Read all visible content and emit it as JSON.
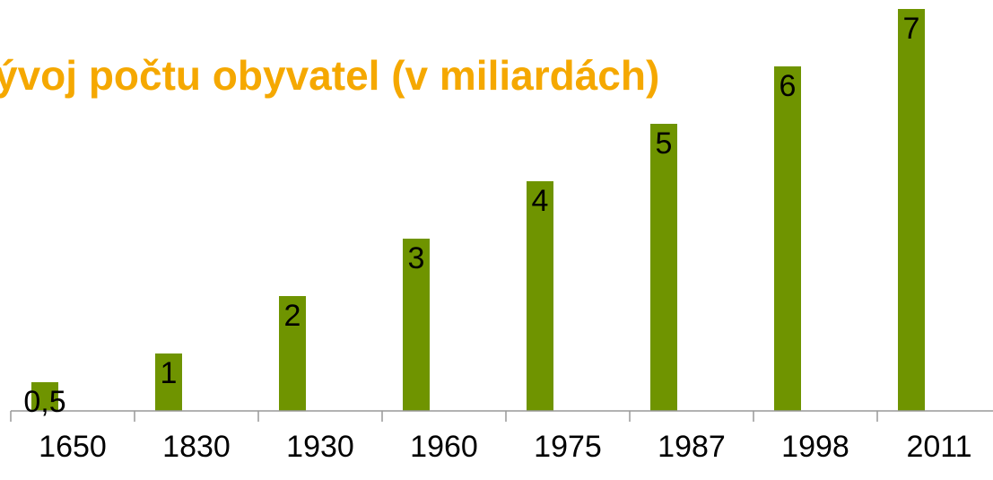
{
  "chart_data": {
    "type": "bar",
    "title": "ývoj počtu obyvatel (v miliardách)",
    "categories": [
      "1650",
      "1830",
      "1930",
      "1960",
      "1975",
      "1987",
      "1998",
      "2011"
    ],
    "values": [
      0.5,
      1,
      2,
      3,
      4,
      5,
      6,
      7
    ],
    "value_labels": [
      "0,5",
      "1",
      "2",
      "3",
      "4",
      "5",
      "6",
      "7"
    ],
    "color": "#6f9400",
    "ylim": [
      0,
      7
    ]
  }
}
